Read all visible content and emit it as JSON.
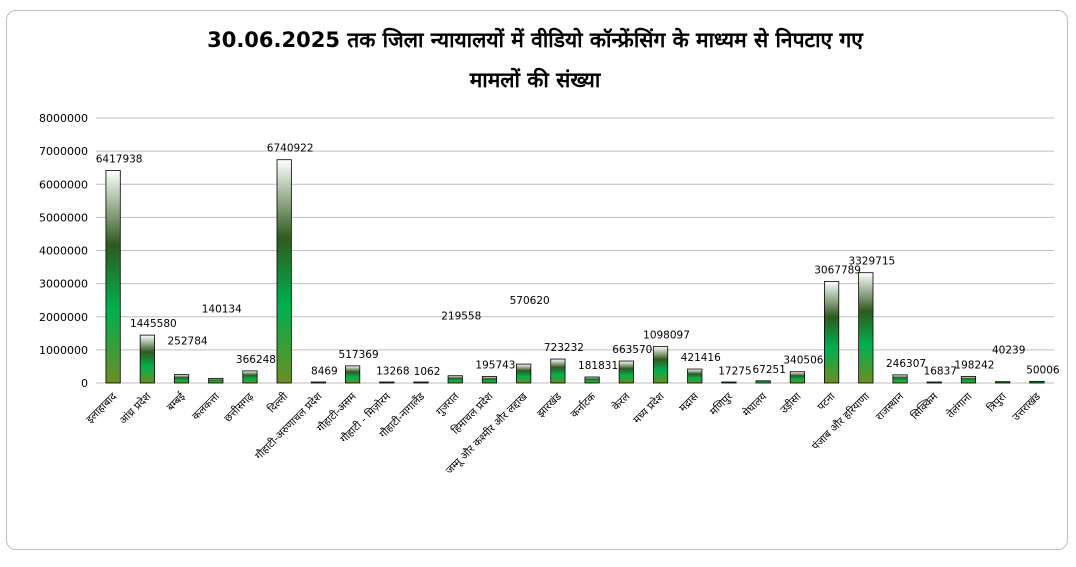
{
  "chart_data": {
    "type": "bar",
    "title": "30.06.2025 तक जिला न्यायालयों में वीडियो कॉन्फ्रेंसिंग के माध्यम से निपटाए गए\nमामलों की संख्या",
    "xlabel": "",
    "ylabel": "",
    "ylim": [
      0,
      8000000
    ],
    "yticks": [
      0,
      1000000,
      2000000,
      3000000,
      4000000,
      5000000,
      6000000,
      7000000,
      8000000
    ],
    "grid": true,
    "legend": "none",
    "categories": [
      "इलाहाबाद",
      "आंध्र प्रदेश",
      "बम्बई",
      "कलकत्ता",
      "छत्तीसगढ़",
      "दिल्ली",
      "गौहाटी-अरुणाचल प्रदेश",
      "गौहाटी-असम",
      "गौहाटी - मिज़ोरम",
      "गौहाटी-नागालैंड",
      "गुजरात",
      "हिमाचल प्रदेश",
      "जम्मू और कश्मीर और लद्दाख",
      "झारखंड",
      "कर्नाटक",
      "केरल",
      "मध्य प्रदेश",
      "मद्रास",
      "मणिपुर",
      "मेघालय",
      "उड़ीसा",
      "पटना",
      "पंजाब और हरियाणा",
      "राजस्थान",
      "सिक्किम",
      "तेलंगाना",
      "त्रिपुरा",
      "उत्तराखंड"
    ],
    "values": [
      6417938,
      1445580,
      252784,
      140134,
      366248,
      6740922,
      8469,
      517369,
      13268,
      1062,
      219558,
      195743,
      570620,
      723232,
      181831,
      663570,
      1098097,
      421416,
      17275,
      67251,
      340506,
      3067789,
      3329715,
      246307,
      16837,
      198242,
      40239,
      50006
    ],
    "value_labels": [
      "6417938",
      "1445580",
      "252784",
      "140134",
      "366248",
      "6740922",
      "8469",
      "517369",
      "13268",
      "1062",
      "219558",
      "195743",
      "570620",
      "723232",
      "181831",
      "663570",
      "1098097",
      "421416",
      "17275",
      "67251",
      "340506",
      "3067789",
      "3329715",
      "246307",
      "16837",
      "198242",
      "40239",
      "50006"
    ],
    "colors": {
      "bar_top": "#ffffff",
      "bar_dark": "#2f5a1e",
      "bar_bright": "#00b050",
      "bar_bottom": "#6b8e23",
      "bar_edge": "#000000",
      "grid": "#bfbfbf"
    }
  }
}
